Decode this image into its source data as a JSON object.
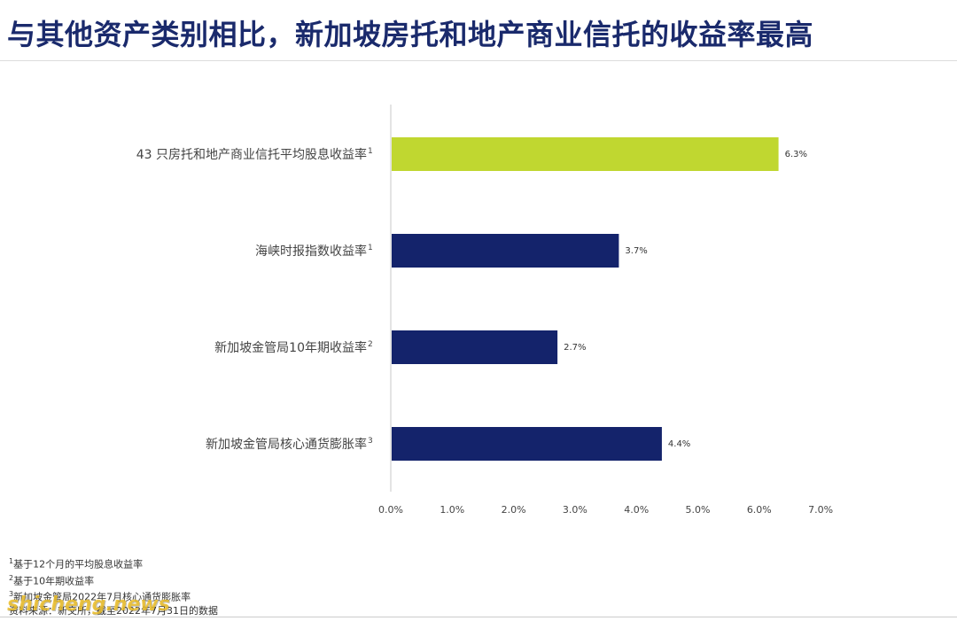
{
  "title": "与其他资产类别相比，新加坡房托和地产商业信托的收益率最高",
  "chart_data": {
    "type": "bar",
    "orientation": "horizontal",
    "categories": [
      {
        "label": "43 只房托和地产商业信托平均股息收益率",
        "sup": "1"
      },
      {
        "label": "海峡时报指数收益率",
        "sup": "1"
      },
      {
        "label": "新加坡金管局10年期收益率",
        "sup": "2"
      },
      {
        "label": "新加坡金管局核心通货膨胀率",
        "sup": "3"
      }
    ],
    "values": [
      6.3,
      3.7,
      2.7,
      4.4
    ],
    "value_labels": [
      "6.3%",
      "3.7%",
      "2.7%",
      "4.4%"
    ],
    "colors": [
      "#c0d730",
      "#14236b",
      "#14236b",
      "#14236b"
    ],
    "xlim": [
      0,
      7
    ],
    "xticks": [
      "0.0%",
      "1.0%",
      "2.0%",
      "3.0%",
      "4.0%",
      "5.0%",
      "6.0%",
      "7.0%"
    ],
    "grid": false
  },
  "footnotes": [
    {
      "sup": "1",
      "text": "基于12个月的平均股息收益率"
    },
    {
      "sup": "2",
      "text": "基于10年期收益率"
    },
    {
      "sup": "3",
      "text": "新加坡金管局2022年7月核心通货膨胀率"
    },
    {
      "sup": "",
      "text": "资料来源：新交所，截至2022年7月31日的数据"
    }
  ],
  "watermark": "shicheng.news"
}
